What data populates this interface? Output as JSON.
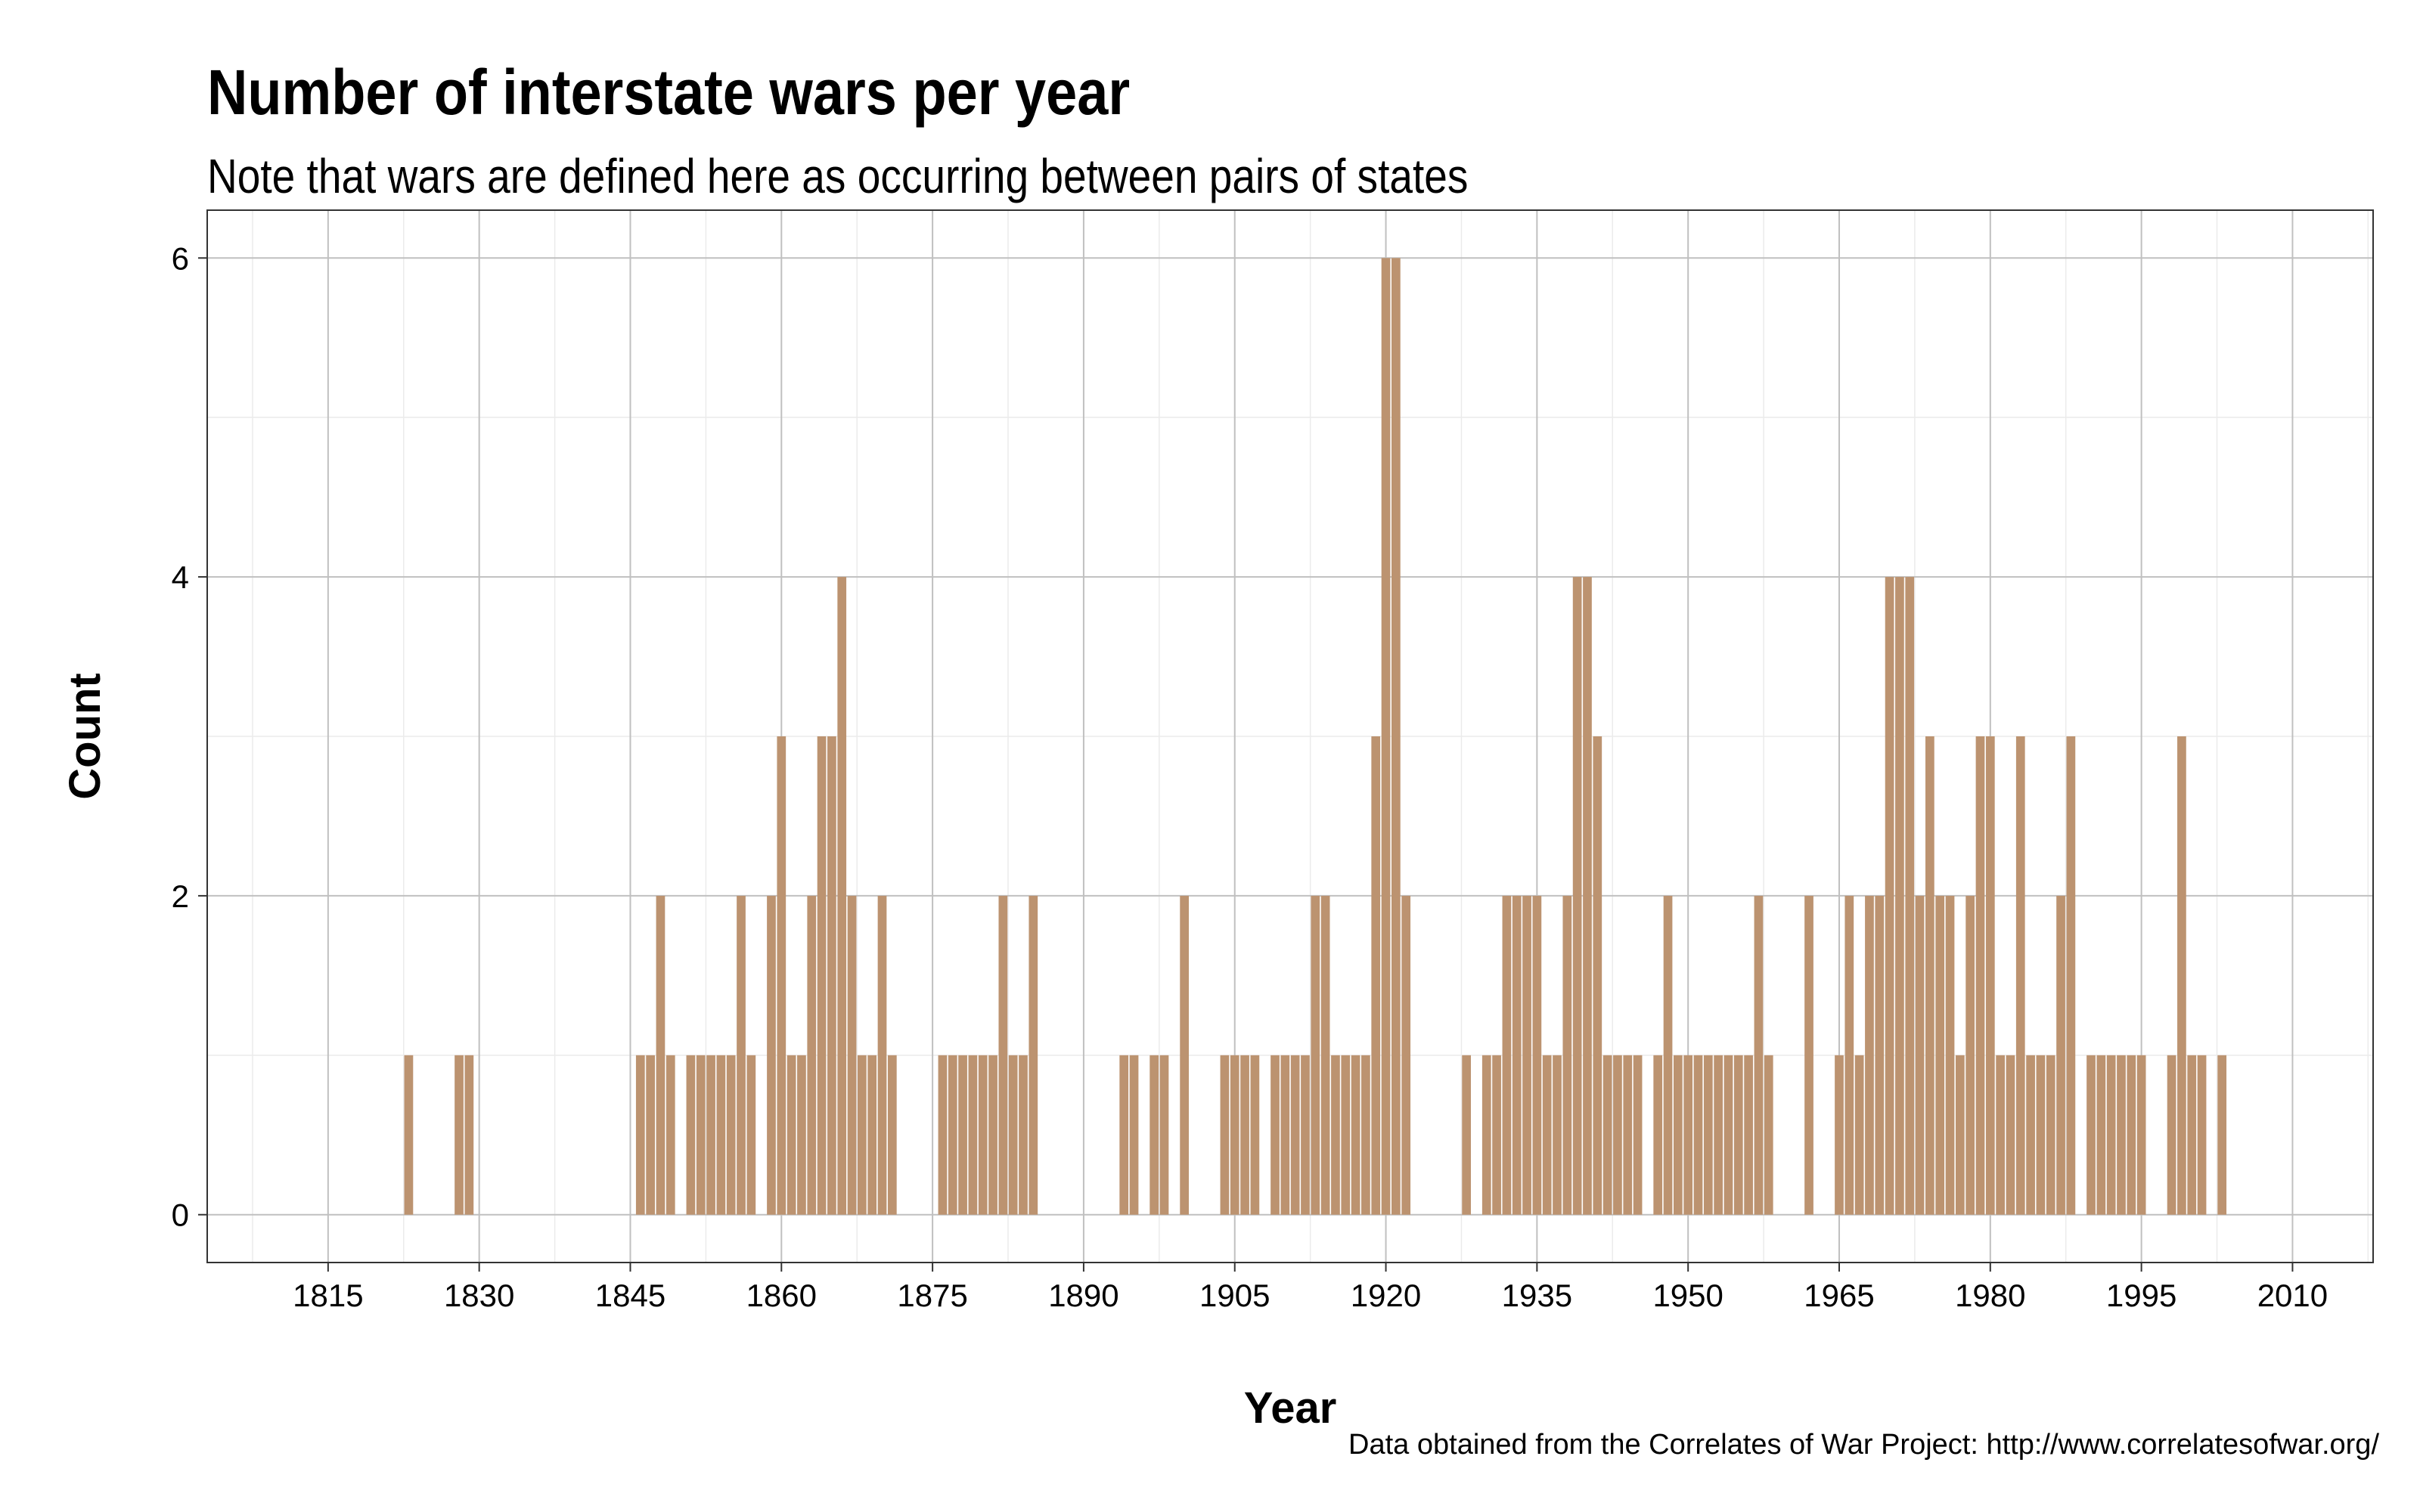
{
  "chart_data": {
    "type": "bar",
    "title": "Number of interstate wars per year",
    "subtitle": "Note that wars are defined here as occurring between pairs of states",
    "caption": "Data obtained from the Correlates of War Project: http://www.correlatesofwar.org/",
    "xlabel": "Year",
    "ylabel": "Count",
    "xlim": [
      1803,
      2018
    ],
    "ylim": [
      -0.3,
      6.3
    ],
    "x_ticks": [
      1815,
      1830,
      1845,
      1860,
      1875,
      1890,
      1905,
      1920,
      1935,
      1950,
      1965,
      1980,
      1995,
      2010
    ],
    "y_ticks": [
      0,
      2,
      4,
      6
    ],
    "grid": true,
    "bar_color": "#bc9370",
    "x": [
      1823,
      1828,
      1829,
      1846,
      1847,
      1848,
      1849,
      1851,
      1852,
      1853,
      1854,
      1855,
      1856,
      1857,
      1859,
      1860,
      1861,
      1862,
      1863,
      1864,
      1865,
      1866,
      1867,
      1868,
      1869,
      1870,
      1871,
      1876,
      1877,
      1878,
      1879,
      1880,
      1881,
      1882,
      1883,
      1884,
      1885,
      1894,
      1895,
      1897,
      1898,
      1900,
      1904,
      1905,
      1906,
      1907,
      1909,
      1910,
      1911,
      1912,
      1913,
      1914,
      1915,
      1916,
      1917,
      1918,
      1919,
      1920,
      1921,
      1922,
      1928,
      1930,
      1931,
      1932,
      1933,
      1934,
      1935,
      1936,
      1937,
      1938,
      1939,
      1940,
      1941,
      1942,
      1943,
      1944,
      1945,
      1947,
      1948,
      1949,
      1950,
      1951,
      1952,
      1953,
      1954,
      1955,
      1956,
      1957,
      1958,
      1962,
      1965,
      1966,
      1967,
      1968,
      1969,
      1970,
      1971,
      1972,
      1973,
      1974,
      1975,
      1976,
      1977,
      1978,
      1979,
      1980,
      1981,
      1982,
      1983,
      1984,
      1985,
      1986,
      1987,
      1988,
      1990,
      1991,
      1992,
      1993,
      1994,
      1995,
      1998,
      1999,
      2000,
      2001,
      2003
    ],
    "values": [
      1,
      1,
      1,
      1,
      1,
      2,
      1,
      1,
      1,
      1,
      1,
      1,
      2,
      1,
      2,
      3,
      1,
      1,
      2,
      3,
      3,
      4,
      2,
      1,
      1,
      2,
      1,
      1,
      1,
      1,
      1,
      1,
      1,
      2,
      1,
      1,
      2,
      1,
      1,
      1,
      1,
      2,
      1,
      1,
      1,
      1,
      1,
      1,
      1,
      1,
      2,
      2,
      1,
      1,
      1,
      1,
      3,
      6,
      6,
      2,
      1,
      1,
      1,
      2,
      2,
      2,
      2,
      1,
      1,
      2,
      4,
      4,
      3,
      1,
      1,
      1,
      1,
      1,
      2,
      1,
      1,
      1,
      1,
      1,
      1,
      1,
      1,
      2,
      1,
      2,
      1,
      2,
      1,
      2,
      2,
      4,
      4,
      4,
      2,
      3,
      2,
      2,
      1,
      2,
      3,
      3,
      1,
      1,
      3,
      1,
      1,
      1,
      2,
      3,
      1,
      1,
      1,
      1,
      1,
      1,
      1,
      3,
      1,
      1,
      1
    ]
  }
}
